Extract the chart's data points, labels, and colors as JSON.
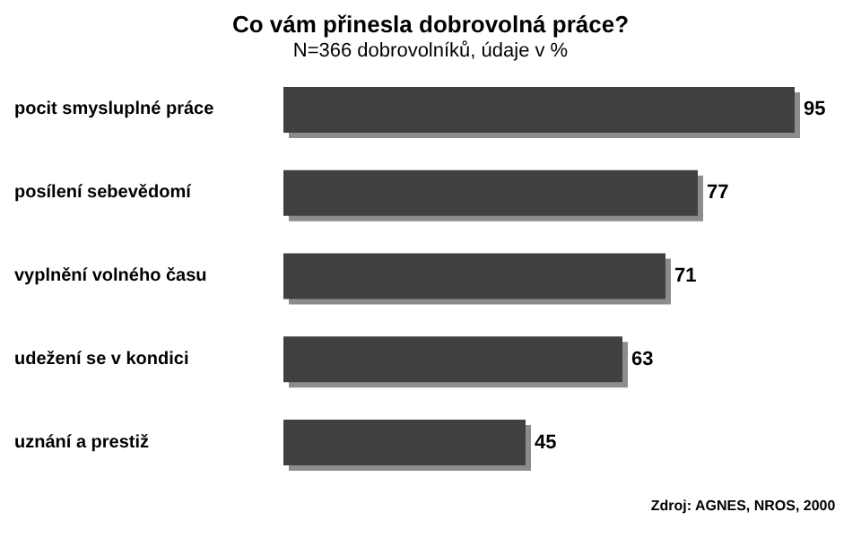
{
  "chart_data": {
    "type": "bar",
    "orientation": "horizontal",
    "title": "Co vám přinesla dobrovolná práce?",
    "subtitle": "N=366 dobrovolníků, údaje v %",
    "categories": [
      "pocit smysluplné práce",
      "posílení sebevědomí",
      "vyplnění volného času",
      "udežení se v kondici",
      "uznání a prestiž"
    ],
    "values": [
      95,
      77,
      71,
      63,
      45
    ],
    "color": "#404040",
    "data_labels": true,
    "annotations": [
      "Zdroj: AGNES, NROS, 2000"
    ]
  }
}
